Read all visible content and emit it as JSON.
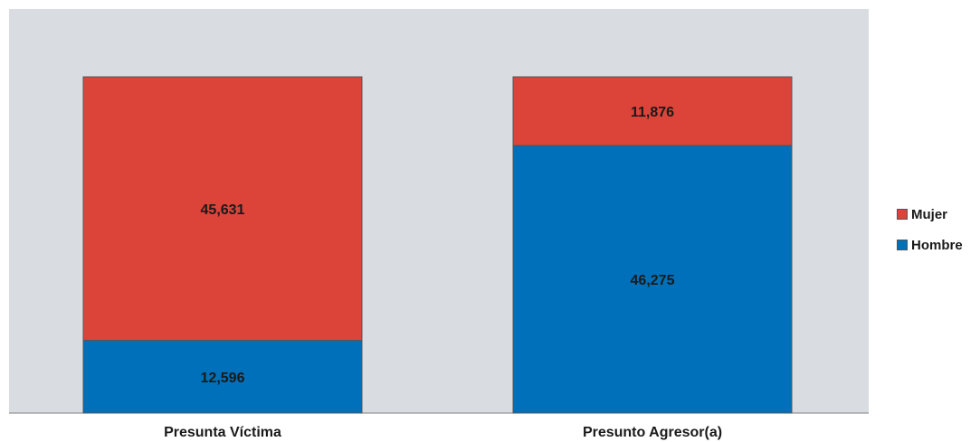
{
  "chart_data": {
    "type": "bar",
    "stacked": true,
    "categories": [
      "Presunta Víctima",
      "Presunto Agresor(a)"
    ],
    "series": [
      {
        "name": "Hombre",
        "values": [
          12596,
          46275
        ],
        "labels": [
          "12,596",
          "46,275"
        ],
        "color": "#0070ba"
      },
      {
        "name": "Mujer",
        "values": [
          45631,
          11876
        ],
        "labels": [
          "45,631",
          "11,876"
        ],
        "color": "#dc443a"
      }
    ],
    "legend_position": "right",
    "grid": false,
    "colors": {
      "plot_background": "#d9dde1",
      "bar_border": "#555555"
    }
  }
}
